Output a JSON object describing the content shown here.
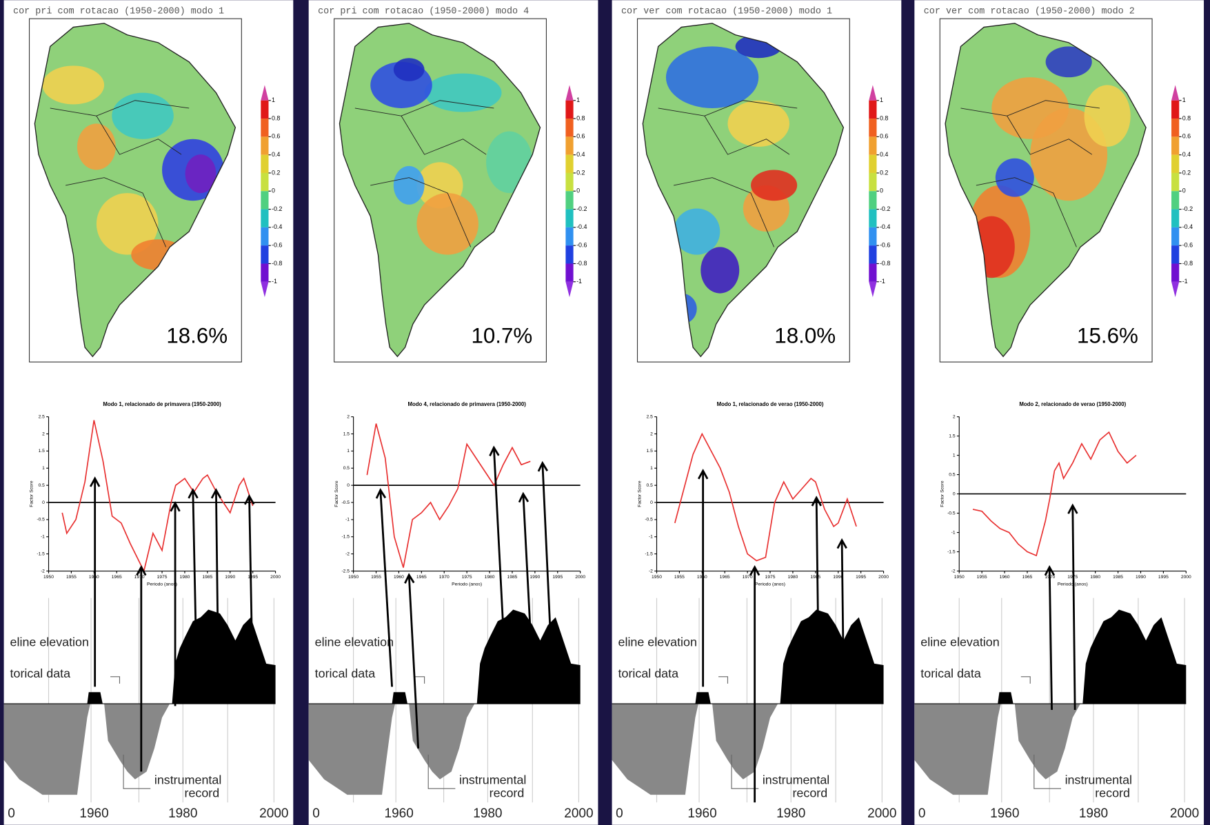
{
  "panels": [
    {
      "map_title": "cor pri com rotacao (1950-2000) modo 1",
      "variance": "18.6%",
      "chart": {
        "type": "line",
        "title": "Modo 1, relacionado de primavera (1950-2000)",
        "ylabel": "Factor Score",
        "xlabel": "Periodo (anos)",
        "color": "#e83030",
        "x": [
          1953,
          1954,
          1956,
          1958,
          1960,
          1962,
          1964,
          1966,
          1968,
          1971,
          1973,
          1975,
          1977,
          1978,
          1980,
          1982,
          1984,
          1985,
          1987,
          1989,
          1990,
          1992,
          1993,
          1995
        ],
        "values": [
          -0.3,
          -0.9,
          -0.5,
          0.6,
          2.4,
          1.2,
          -0.4,
          -0.6,
          -1.2,
          -2,
          -0.9,
          -1.4,
          0,
          0.5,
          0.7,
          0.3,
          0.7,
          0.8,
          0.3,
          -0.1,
          -0.3,
          0.5,
          0.7,
          -0.1
        ],
        "xlim": [
          1950,
          2000
        ],
        "xticks": [
          1950,
          1955,
          1960,
          1965,
          1970,
          1975,
          1980,
          1985,
          1990,
          1995,
          2000
        ],
        "ylim": [
          -2,
          2.5
        ],
        "yticks": [
          -2,
          -1.5,
          -1,
          -0.5,
          0,
          0.5,
          1,
          1.5,
          2,
          2.5
        ]
      },
      "elevation": {
        "labels": [
          "eline elevation",
          "torical data",
          "instrumental",
          "record"
        ],
        "axis": [
          "0",
          "1960",
          "1980",
          "2000"
        ]
      }
    },
    {
      "map_title": "cor pri com rotacao (1950-2000) modo 4",
      "variance": "10.7%",
      "chart": {
        "type": "line",
        "title": "Modo 4, relacionado de primavera (1950-2000)",
        "ylabel": "Factor Score",
        "xlabel": "Periodo (anos)",
        "color": "#e83030",
        "x": [
          1953,
          1955,
          1957,
          1959,
          1961,
          1963,
          1965,
          1967,
          1969,
          1971,
          1973,
          1975,
          1977,
          1979,
          1981,
          1983,
          1985,
          1987,
          1989
        ],
        "values": [
          0.3,
          1.8,
          0.8,
          -1.5,
          -2.4,
          -1,
          -0.8,
          -0.5,
          -1,
          -0.6,
          -0.1,
          1.2,
          0.8,
          0.4,
          0,
          0.6,
          1.1,
          0.6,
          0.7
        ],
        "xlim": [
          1950,
          2000
        ],
        "xticks": [
          1950,
          1955,
          1960,
          1965,
          1970,
          1975,
          1980,
          1985,
          1990,
          1995,
          2000
        ],
        "ylim": [
          -2.5,
          2
        ],
        "yticks": [
          -2.5,
          -2,
          -1.5,
          -1,
          -0.5,
          0,
          0.5,
          1,
          1.5,
          2
        ]
      },
      "elevation": {
        "labels": [
          "eline elevation",
          "torical data",
          "instrumental",
          "record"
        ],
        "axis": [
          "0",
          "1960",
          "1980",
          "2000"
        ]
      }
    },
    {
      "map_title": "cor ver com rotacao (1950-2000) modo 1",
      "variance": "18.0%",
      "chart": {
        "type": "line",
        "title": "Modo 1, relacionado de verao (1950-2000)",
        "ylabel": "Factor Score",
        "xlabel": "Periodo (anos)",
        "color": "#e83030",
        "x": [
          1954,
          1956,
          1958,
          1960,
          1962,
          1964,
          1966,
          1968,
          1970,
          1972,
          1974,
          1976,
          1978,
          1980,
          1982,
          1984,
          1985,
          1987,
          1989,
          1990,
          1992,
          1994
        ],
        "values": [
          -0.6,
          0.4,
          1.4,
          2,
          1.5,
          1,
          0.3,
          -0.7,
          -1.5,
          -1.7,
          -1.6,
          0,
          0.6,
          0.1,
          0.4,
          0.7,
          0.6,
          -0.2,
          -0.7,
          -0.6,
          0.1,
          -0.7
        ],
        "xlim": [
          1950,
          2000
        ],
        "xticks": [
          1950,
          1955,
          1960,
          1965,
          1970,
          1975,
          1980,
          1985,
          1990,
          1995,
          2000
        ],
        "ylim": [
          -2,
          2.5
        ],
        "yticks": [
          -2,
          -1.5,
          -1,
          -0.5,
          0,
          0.5,
          1,
          1.5,
          2,
          2.5
        ]
      },
      "elevation": {
        "labels": [
          "eline elevation",
          "torical data",
          "instrumental",
          "record"
        ],
        "axis": [
          "0",
          "1960",
          "1980",
          "2000"
        ]
      }
    },
    {
      "map_title": "cor ver com rotacao (1950-2000) modo 2",
      "variance": "15.6%",
      "chart": {
        "type": "line",
        "title": "Modo 2, relacionado de verao (1950-2000)",
        "ylabel": "Factor Score",
        "xlabel": "Periodo (anos)",
        "color": "#e83030",
        "x": [
          1953,
          1955,
          1957,
          1959,
          1961,
          1963,
          1965,
          1967,
          1969,
          1970,
          1971,
          1972,
          1973,
          1975,
          1977,
          1979,
          1981,
          1983,
          1985,
          1987,
          1989
        ],
        "values": [
          -0.4,
          -0.45,
          -0.7,
          -0.9,
          -1,
          -1.3,
          -1.5,
          -1.6,
          -0.7,
          -0.1,
          0.6,
          0.8,
          0.4,
          0.8,
          1.3,
          0.9,
          1.4,
          1.6,
          1.1,
          0.8,
          1
        ],
        "xlim": [
          1950,
          2000
        ],
        "xticks": [
          1950,
          1955,
          1960,
          1965,
          1970,
          1975,
          1980,
          1985,
          1990,
          1995,
          2000
        ],
        "ylim": [
          -2,
          2
        ],
        "yticks": [
          -2,
          -1.5,
          -1,
          -0.5,
          0,
          0.5,
          1,
          1.5,
          2
        ]
      },
      "elevation": {
        "labels": [
          "eline elevation",
          "torical data",
          "instrumental",
          "record"
        ],
        "axis": [
          "0",
          "1960",
          "1980",
          "2000"
        ]
      }
    }
  ],
  "colorbar": {
    "ticks": [
      1,
      0.8,
      0.6,
      0.4,
      0.2,
      0,
      -0.2,
      -0.4,
      -0.6,
      -0.8,
      -1
    ],
    "colors": [
      "#e01818",
      "#f06020",
      "#f0a030",
      "#e0d030",
      "#c8e040",
      "#50d080",
      "#20c0c0",
      "#3090f0",
      "#2040e0",
      "#7010d0"
    ]
  }
}
